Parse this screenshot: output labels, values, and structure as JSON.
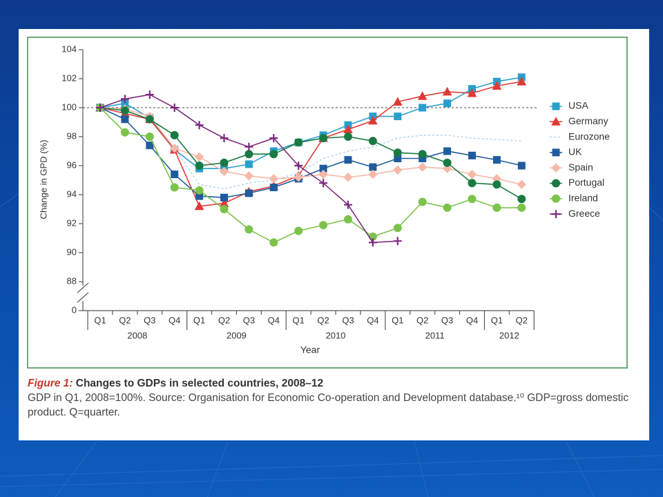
{
  "chart_data": {
    "type": "line",
    "ylabel": "Change in GPD (%)",
    "xlabel": "Year",
    "categories": [
      "Q1",
      "Q2",
      "Q3",
      "Q4",
      "Q1",
      "Q2",
      "Q3",
      "Q4",
      "Q1",
      "Q2",
      "Q3",
      "Q4",
      "Q1",
      "Q2",
      "Q3",
      "Q4",
      "Q1",
      "Q2"
    ],
    "years": [
      "2008",
      "2009",
      "2010",
      "2011",
      "2012"
    ],
    "ylim": [
      88,
      104
    ],
    "yticks": [
      0,
      88,
      90,
      92,
      94,
      96,
      98,
      100,
      102,
      104
    ],
    "axis_break": true,
    "reference_line": 100,
    "series": [
      {
        "name": "USA",
        "color": "#2a9fcc",
        "marker": "square",
        "values": [
          100,
          100.3,
          99.3,
          97.1,
          95.8,
          95.8,
          96.1,
          97.0,
          97.6,
          98.1,
          98.8,
          99.4,
          99.4,
          100.0,
          100.3,
          101.3,
          101.8,
          102.1
        ]
      },
      {
        "name": "Germany",
        "color": "#e03a36",
        "marker": "triangle",
        "values": [
          100,
          99.6,
          99.2,
          97.1,
          93.2,
          93.4,
          94.2,
          94.6,
          95.3,
          97.9,
          98.5,
          99.1,
          100.4,
          100.8,
          101.1,
          101.0,
          101.5,
          101.8
        ]
      },
      {
        "name": "Eurozone",
        "color": "#a9d6ee",
        "marker": "dashed",
        "values": [
          100,
          99.9,
          99.4,
          97.2,
          94.7,
          94.4,
          94.8,
          95.0,
          95.5,
          96.5,
          97.0,
          97.3,
          97.9,
          98.1,
          98.1,
          97.9,
          97.8,
          97.7
        ]
      },
      {
        "name": "UK",
        "color": "#1f5c9e",
        "marker": "square",
        "values": [
          100,
          99.2,
          97.4,
          95.4,
          93.9,
          93.8,
          94.1,
          94.5,
          95.1,
          95.8,
          96.4,
          95.9,
          96.5,
          96.5,
          97.0,
          96.7,
          96.4,
          96.0
        ]
      },
      {
        "name": "Spain",
        "color": "#f6b9a8",
        "marker": "diamond",
        "values": [
          100,
          99.9,
          99.4,
          97.2,
          96.6,
          95.6,
          95.3,
          95.1,
          95.2,
          95.4,
          95.2,
          95.4,
          95.7,
          95.9,
          95.8,
          95.4,
          95.1,
          94.7
        ]
      },
      {
        "name": "Portugal",
        "color": "#1b7a42",
        "marker": "circle",
        "values": [
          100,
          99.8,
          99.2,
          98.1,
          96.0,
          96.2,
          96.8,
          96.8,
          97.6,
          97.9,
          98.0,
          97.7,
          96.9,
          96.8,
          96.2,
          94.8,
          94.7,
          93.7
        ]
      },
      {
        "name": "Ireland",
        "color": "#7cc24b",
        "marker": "circle",
        "values": [
          100,
          98.3,
          98.0,
          94.5,
          94.3,
          93.0,
          91.6,
          90.7,
          91.5,
          91.9,
          92.3,
          91.1,
          91.7,
          93.5,
          93.1,
          93.7,
          93.1,
          93.1
        ]
      },
      {
        "name": "Greece",
        "color": "#7b2a7c",
        "marker": "plus",
        "values": [
          100,
          100.6,
          100.9,
          100.0,
          98.8,
          97.9,
          97.3,
          97.9,
          96.0,
          94.8,
          93.3,
          90.7,
          90.8,
          null,
          null,
          null,
          null,
          null
        ]
      }
    ]
  },
  "caption": {
    "label": "Figure 1:",
    "title": "Changes to GDPs in selected countries, 2008–12",
    "text": "GDP in Q1, 2008=100%. Source: Organisation for Economic Co-operation and Development database.¹⁰ GDP=gross domestic product. Q=quarter."
  }
}
